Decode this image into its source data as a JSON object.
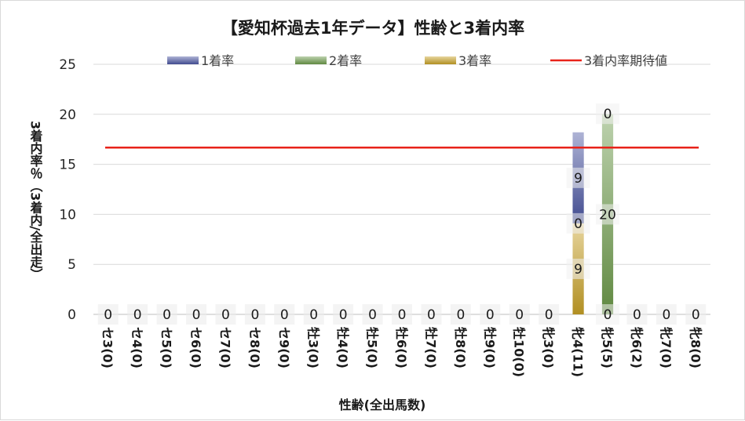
{
  "chart_data": {
    "type": "bar",
    "stacked": true,
    "title": "【愛知杯過去1年データ】性齢と3着内率",
    "xlabel": "性齢(全出馬数)",
    "ylabel": "3着内率％（3着内/全出走）",
    "ylim": [
      0,
      25
    ],
    "yticks": [
      "0",
      "5",
      "10",
      "15",
      "20",
      "25"
    ],
    "grid": true,
    "legend_position": "top",
    "categories": [
      "セ3(0)",
      "セ4(0)",
      "セ5(0)",
      "セ6(0)",
      "セ7(0)",
      "セ8(0)",
      "セ9(0)",
      "牡3(0)",
      "牡4(0)",
      "牡5(0)",
      "牡6(0)",
      "牡7(0)",
      "牡8(0)",
      "牡9(0)",
      "牡10(0)",
      "牝3(0)",
      "牝4(11)",
      "牝5(5)",
      "牝6(2)",
      "牝7(0)",
      "牝8(0)"
    ],
    "series": [
      {
        "name": "3着率",
        "color": "#c9a227",
        "values": [
          0,
          0,
          0,
          0,
          0,
          0,
          0,
          0,
          0,
          0,
          0,
          0,
          0,
          0,
          0,
          0,
          9.1,
          0,
          0,
          0,
          0
        ]
      },
      {
        "name": "2着率",
        "color": "#6d9c4a",
        "values": [
          0,
          0,
          0,
          0,
          0,
          0,
          0,
          0,
          0,
          0,
          0,
          0,
          0,
          0,
          0,
          0,
          0,
          20,
          0,
          0,
          0
        ]
      },
      {
        "name": "1着率",
        "color": "#4a55a2",
        "values": [
          0,
          0,
          0,
          0,
          0,
          0,
          0,
          0,
          0,
          0,
          0,
          0,
          0,
          0,
          0,
          0,
          9.1,
          0,
          0,
          0,
          0
        ]
      }
    ],
    "data_labels": [
      [
        "0"
      ],
      [
        "0"
      ],
      [
        "0"
      ],
      [
        "0"
      ],
      [
        "0"
      ],
      [
        "0"
      ],
      [
        "0"
      ],
      [
        "0"
      ],
      [
        "0"
      ],
      [
        "0"
      ],
      [
        "0"
      ],
      [
        "0"
      ],
      [
        "0"
      ],
      [
        "0"
      ],
      [
        "0"
      ],
      [
        "0"
      ],
      [
        "9",
        "0",
        "9"
      ],
      [
        "0",
        "20",
        "0"
      ],
      [
        "0"
      ],
      [
        "0"
      ],
      [
        "0"
      ]
    ],
    "reference_line": {
      "name": "3着内率期待値",
      "value": 16.67,
      "color": "#e8231a"
    },
    "legend": [
      {
        "name": "1着率",
        "color": "#4a55a2",
        "kind": "bar"
      },
      {
        "name": "2着率",
        "color": "#6d9c4a",
        "kind": "bar"
      },
      {
        "name": "3着率",
        "color": "#c9a227",
        "kind": "bar"
      },
      {
        "name": "3着内率期待値",
        "color": "#e8231a",
        "kind": "line"
      }
    ]
  }
}
